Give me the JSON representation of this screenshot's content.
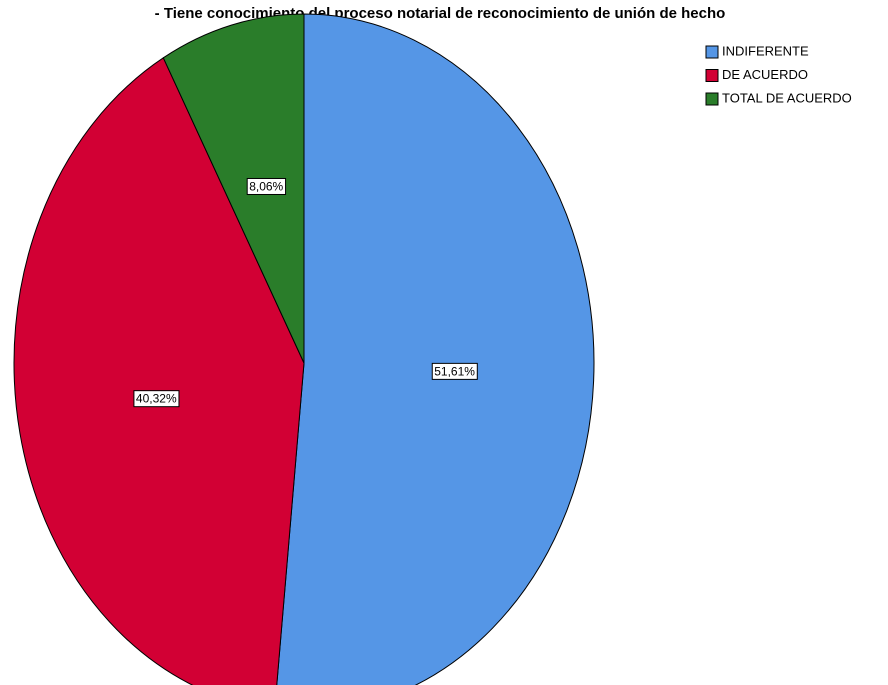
{
  "chart_data": {
    "type": "pie",
    "title": "- Tiene conocimiento del proceso notarial de reconocimiento de unión de hecho",
    "categories": [
      "INDIFERENTE",
      "DE ACUERDO",
      "TOTAL DE ACUERDO"
    ],
    "values": [
      51.61,
      40.32,
      8.06
    ],
    "value_labels": [
      "51,61%",
      "40,32%",
      "8,06%"
    ],
    "colors": [
      "#5596e6",
      "#d20034",
      "#2a7d2a"
    ],
    "legend": "top-right"
  }
}
